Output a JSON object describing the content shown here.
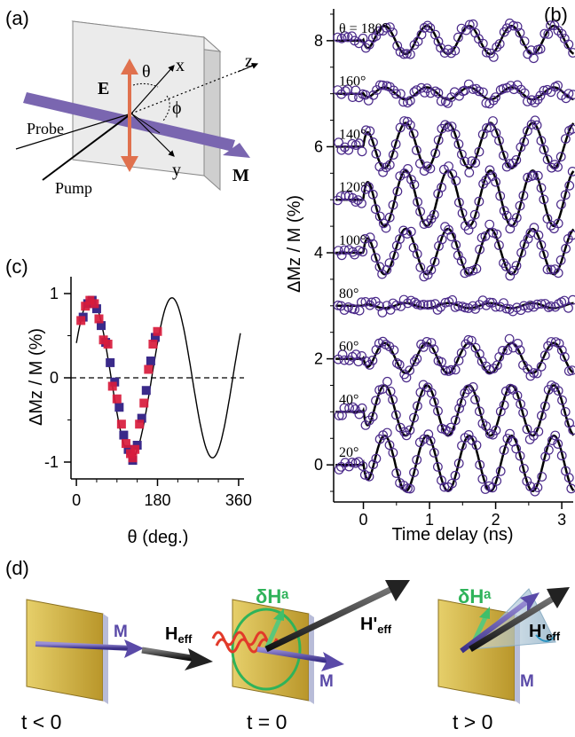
{
  "panels": {
    "a": {
      "label": "(a)",
      "E": "E",
      "theta": "θ",
      "x": "x",
      "z": "z",
      "y": "y",
      "phi": "ϕ",
      "probe": "Probe",
      "pump": "Pump",
      "M": "M"
    },
    "b": {
      "label": "(b)",
      "theta_prefix": "θ = "
    },
    "c": {
      "label": "(c)"
    },
    "d": {
      "label": "(d)",
      "M": "M",
      "dH": "δHᵃ",
      "Heff": "H",
      "Heff_sub": "eff",
      "Heffp": "H'",
      "t_neg": "t < 0",
      "t_zero": "t = 0",
      "t_pos": "t > 0"
    }
  },
  "colors": {
    "measured": "#4b2a8a",
    "fit": "#000000",
    "squares_a": "#d81b3c",
    "squares_b": "#3a2a8a",
    "beam_M": "#7a66b0",
    "E_arrow": "#e0714e",
    "slab": "#d9b84a",
    "dH": "#2fb35a",
    "cone": "#a8bfd0"
  },
  "chart_data": [
    {
      "type": "line",
      "panel": "(b)",
      "xlabel": "Time delay (ns)",
      "ylabel": "ΔMz / M (%)",
      "xlim": [
        -0.45,
        3.2
      ],
      "ylim": [
        -0.7,
        8.6
      ],
      "xticks": [
        0,
        1,
        2,
        3
      ],
      "yticks": [
        0,
        2,
        4,
        6,
        8
      ],
      "period_ns": 0.64,
      "series": [
        {
          "name": "20°",
          "offset": 0,
          "amplitude": 0.55,
          "phase": 0.0
        },
        {
          "name": "40°",
          "offset": 1,
          "amplitude": 0.5,
          "phase": 0.0
        },
        {
          "name": "60°",
          "offset": 2,
          "amplitude": 0.3,
          "phase": 0.0
        },
        {
          "name": "80°",
          "offset": 3,
          "amplitude": 0.05,
          "phase": 3.14
        },
        {
          "name": "100°",
          "offset": 4,
          "amplitude": 0.45,
          "phase": 3.14
        },
        {
          "name": "120°",
          "offset": 5,
          "amplitude": 0.55,
          "phase": 3.14
        },
        {
          "name": "140°",
          "offset": 6,
          "amplitude": 0.45,
          "phase": 3.14
        },
        {
          "name": "160°",
          "offset": 7,
          "amplitude": 0.12,
          "phase": 0.0
        },
        {
          "name": "180°",
          "offset": 8,
          "amplitude": 0.28,
          "phase": 0.0
        }
      ]
    },
    {
      "type": "scatter",
      "panel": "(c)",
      "xlabel": "θ (deg.)",
      "ylabel": "ΔMz / M (%)",
      "xlim": [
        -12,
        372
      ],
      "ylim": [
        -1.2,
        1.2
      ],
      "xticks": [
        0,
        180,
        360
      ],
      "yticks": [
        1,
        0,
        -1
      ],
      "ytick_labels": [
        "1",
        "0",
        "-1"
      ],
      "fit": {
        "amplitude": 0.95,
        "period_deg": 180
      },
      "points_red": [
        [
          10,
          0.68
        ],
        [
          20,
          0.85
        ],
        [
          30,
          0.92
        ],
        [
          40,
          0.88
        ],
        [
          50,
          0.7
        ],
        [
          60,
          0.45
        ],
        [
          70,
          0.4
        ],
        [
          80,
          -0.1
        ],
        [
          90,
          -0.25
        ],
        [
          100,
          -0.55
        ],
        [
          110,
          -0.78
        ],
        [
          120,
          -0.9
        ],
        [
          125,
          -0.95
        ],
        [
          130,
          -0.85
        ],
        [
          140,
          -0.55
        ],
        [
          150,
          -0.3
        ],
        [
          160,
          0.1
        ],
        [
          170,
          0.4
        ],
        [
          180,
          0.55
        ]
      ],
      "points_blue": [
        [
          15,
          0.72
        ],
        [
          25,
          0.88
        ],
        [
          35,
          0.92
        ],
        [
          45,
          0.82
        ],
        [
          55,
          0.62
        ],
        [
          65,
          0.42
        ],
        [
          75,
          0.18
        ],
        [
          85,
          -0.05
        ],
        [
          95,
          -0.35
        ],
        [
          105,
          -0.68
        ],
        [
          115,
          -0.85
        ],
        [
          125,
          -0.98
        ],
        [
          135,
          -0.8
        ],
        [
          145,
          -0.48
        ],
        [
          155,
          -0.15
        ],
        [
          165,
          0.2
        ],
        [
          175,
          0.48
        ]
      ]
    }
  ]
}
